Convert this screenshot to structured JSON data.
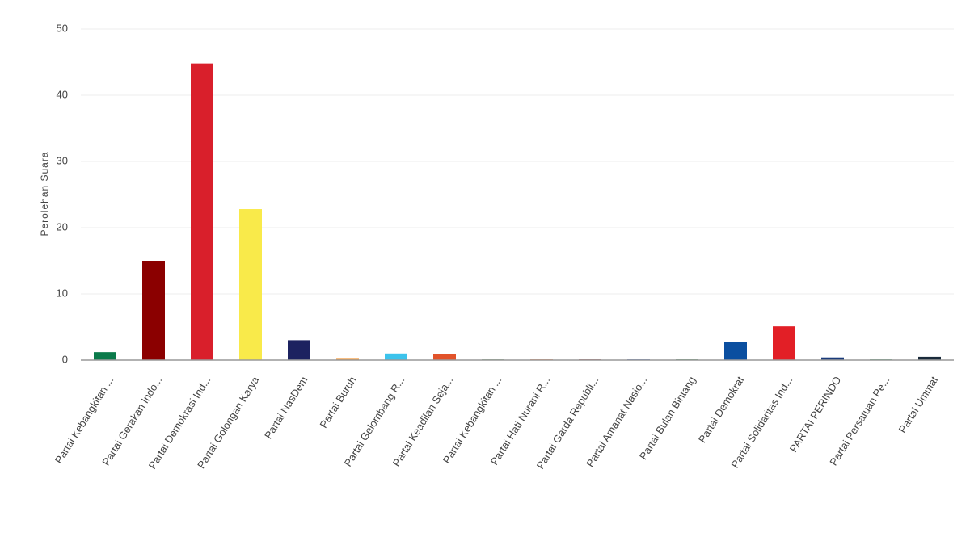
{
  "chart_data": {
    "type": "bar",
    "y_label": "Perolehan Suara",
    "categories": [
      "Partai Kebangkitan ...",
      "Partai Gerakan Indo...",
      "Partai Demokrasi Ind...",
      "Partai Golongan Karya",
      "Partai NasDem",
      "Partai Buruh",
      "Partai Gelombang R...",
      "Partai Keadilan Seja...",
      "Partai Kebangkitan ...",
      "Partai Hati Nurani R...",
      "Partai Garda Republi...",
      "Partai Amanat Nasio...",
      "Partai Bulan Bintang",
      "Partai Demokrat",
      "Partai Solidaritas Ind...",
      "PARTAI PERINDO",
      "Partai Persatuan Pe...",
      "Partai Ummat"
    ],
    "values": [
      1.2,
      15.0,
      44.8,
      22.8,
      3.0,
      0.2,
      1.0,
      0.9,
      0.1,
      0.1,
      0.1,
      0.1,
      0.1,
      2.8,
      5.1,
      0.4,
      0.1,
      0.5
    ],
    "colors": [
      "#0a7a4a",
      "#8b0000",
      "#d91f2b",
      "#f9ea4a",
      "#1c2260",
      "#f59a3c",
      "#3cc3ec",
      "#e2532a",
      "#5a8a5a",
      "#e86a2a",
      "#8a2a2a",
      "#2a4aa0",
      "#2a7a3a",
      "#0b4fa0",
      "#e21f26",
      "#1a3a7a",
      "#2a8a4a",
      "#1a2a3a"
    ],
    "ylim": [
      0,
      50
    ],
    "yticks": [
      0,
      10,
      20,
      30,
      40,
      50
    ],
    "grid": true
  }
}
